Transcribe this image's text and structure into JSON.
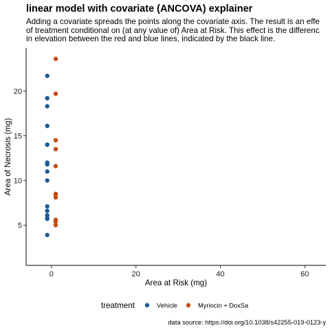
{
  "chart_data": {
    "type": "scatter",
    "title": "linear model with covariate (ANCOVA) explainer",
    "subtitle_lines": [
      "Adding a covariate spreads the points along the covariate axis. The result is an effe",
      "of treatment conditional on (at any value of) Area at Risk. This effect is the differenc",
      "in elevation between the red and blue lines, indicated by the black line."
    ],
    "xlabel": "Area at Risk (mg)",
    "ylabel": "Area of Necrosis (mg)",
    "xlim": [
      -6,
      65
    ],
    "ylim": [
      0.5,
      24.8
    ],
    "xticks": [
      0,
      20,
      40,
      60
    ],
    "yticks": [
      5,
      10,
      15,
      20
    ],
    "grid": false,
    "legend": {
      "title": "treatment",
      "position": "bottom"
    },
    "caption": "data source: https://doi.org/10.1038/s42255-019-0123-y",
    "series": [
      {
        "name": "Vehicle",
        "color": "#1a5c99",
        "x": [
          -1,
          -1,
          -1,
          -1,
          -1,
          -1,
          -1,
          -1,
          -1,
          -1,
          -1,
          -1,
          -1,
          -1,
          -1,
          -1
        ],
        "y": [
          21.7,
          19.2,
          18.3,
          16.1,
          14.0,
          11.8,
          11.0,
          10.0,
          7.1,
          6.6,
          6.1,
          5.8,
          5.7,
          3.9,
          12.0,
          14.0
        ]
      },
      {
        "name": "Myriocin + DoxSa",
        "color": "#c84b0c",
        "x": [
          1,
          1,
          1,
          1,
          1,
          1,
          1,
          1,
          1,
          1,
          1
        ],
        "y": [
          23.6,
          19.7,
          14.5,
          13.5,
          11.6,
          8.5,
          8.1,
          5.6,
          5.4,
          5.0,
          8.4
        ]
      }
    ]
  }
}
